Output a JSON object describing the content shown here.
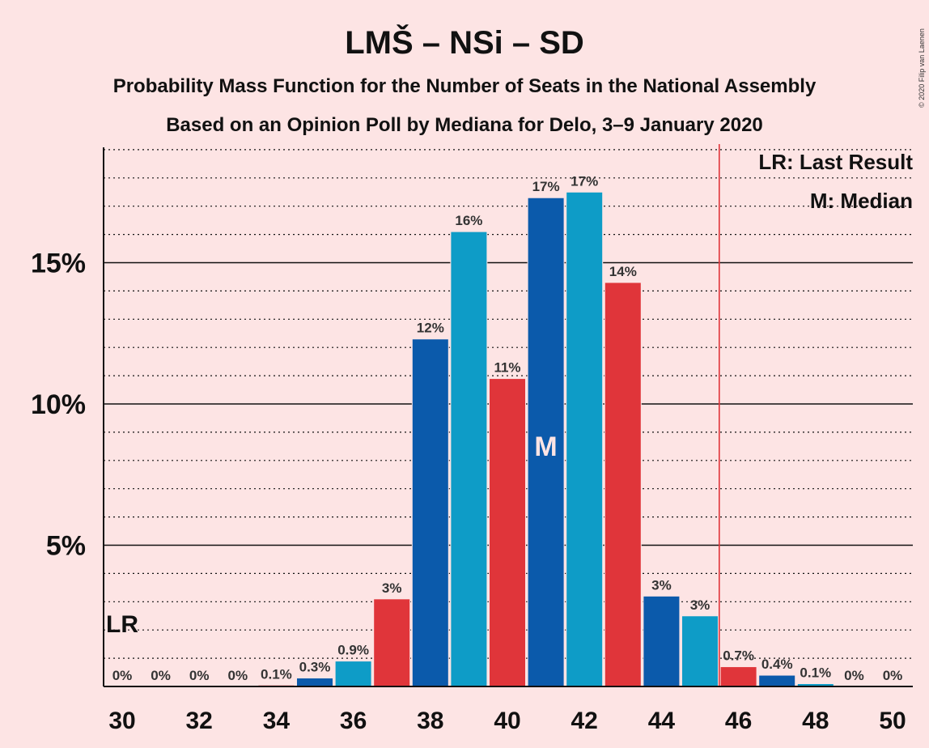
{
  "chart_data": {
    "type": "bar",
    "title": "LMŠ – NSi – SD",
    "subtitle_1": "Probability Mass Function for the Number of Seats in the National Assembly",
    "subtitle_2": "Based on an Opinion Poll by Mediana for Delo, 3–9 January 2020",
    "copyright": "© 2020 Filip van Laenen",
    "x": [
      30,
      31,
      32,
      33,
      34,
      35,
      36,
      37,
      38,
      39,
      40,
      41,
      42,
      43,
      44,
      45,
      46,
      47,
      48,
      49,
      50
    ],
    "values": [
      0,
      0,
      0,
      0,
      0.05,
      0.3,
      0.9,
      3.1,
      12.3,
      16.1,
      10.9,
      17.3,
      17.5,
      14.3,
      3.2,
      2.5,
      0.7,
      0.4,
      0.1,
      0,
      0
    ],
    "data_labels": [
      "0%",
      "0%",
      "0%",
      "0%",
      "0.1%",
      "0.3%",
      "0.9%",
      "3%",
      "12%",
      "16%",
      "11%",
      "17%",
      "17%",
      "14%",
      "3%",
      "3%",
      "0.7%",
      "0.4%",
      "0.1%",
      "0%",
      "0%"
    ],
    "x_tick_labels": [
      "30",
      "32",
      "34",
      "36",
      "38",
      "40",
      "42",
      "44",
      "46",
      "48",
      "50"
    ],
    "y_tick_labels": [
      "5%",
      "10%",
      "15%"
    ],
    "ylim": [
      0,
      19
    ],
    "y_major_ticks": [
      5,
      10,
      15
    ],
    "y_minor_step": 1,
    "bar_colors": [
      "#0e9cc7",
      "#e0353a",
      "#0b5aab"
    ],
    "grid": true,
    "majority_line_x": 45.5,
    "majority_line_color": "#e0353a",
    "last_result_seat": 30,
    "last_result_mark": "LR",
    "median_seat": 41,
    "median_mark": "M",
    "legend": {
      "position": "top-right",
      "entries": [
        "LR: Last Result",
        "M: Median"
      ]
    }
  }
}
